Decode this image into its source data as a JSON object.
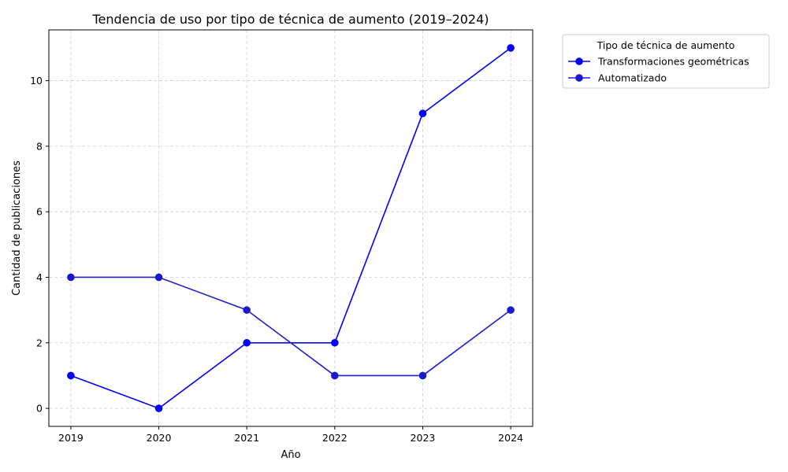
{
  "chart_data": {
    "type": "line",
    "title": "Tendencia de uso por tipo de técnica de aumento (2019–2024)",
    "xlabel": "Año",
    "ylabel": "Cantidad de publicaciones",
    "x": [
      2019,
      2020,
      2021,
      2022,
      2023,
      2024
    ],
    "x_tick_labels": [
      "2019",
      "2020",
      "2021",
      "2022",
      "2023",
      "2024"
    ],
    "y_ticks": [
      0,
      2,
      4,
      6,
      8,
      10
    ],
    "y_tick_labels": [
      "0",
      "2",
      "4",
      "6",
      "8",
      "10"
    ],
    "xlim": [
      2018.75,
      2024.25
    ],
    "ylim": [
      -0.55,
      11.55
    ],
    "grid": true,
    "legend": {
      "title": "Tipo de técnica de aumento",
      "placement": "outside-top-right"
    },
    "series": [
      {
        "name": "Transformaciones geométricas",
        "values": [
          1,
          0,
          2,
          2,
          9,
          11
        ],
        "color": "#0000ff",
        "marker_color": "#0000ff"
      },
      {
        "name": "Automatizado",
        "values": [
          4,
          4,
          3,
          1,
          1,
          3
        ],
        "color": "#1f1fcc",
        "marker_color": "#1a1acc"
      }
    ]
  }
}
